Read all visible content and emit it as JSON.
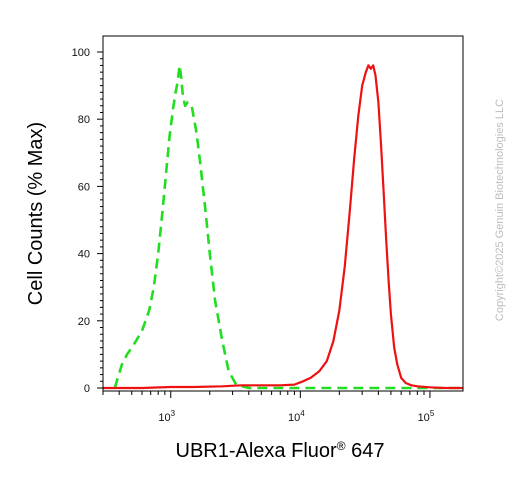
{
  "chart_data": {
    "type": "line",
    "xlabel_main": "UBR1-Alexa Fluor",
    "xlabel_sup": "®",
    "xlabel_tail": " 647",
    "ylabel": "Cell Counts (% Max)",
    "x_scale": "log",
    "xlim": [
      300,
      180000
    ],
    "ylim": [
      0,
      100
    ],
    "y_ticks": [
      0,
      20,
      40,
      60,
      80,
      100
    ],
    "x_ticks": [
      {
        "value": 1000,
        "base": "10",
        "exp": "3"
      },
      {
        "value": 10000,
        "base": "10",
        "exp": "4"
      },
      {
        "value": 100000,
        "base": "10",
        "exp": "5"
      }
    ],
    "grid": false,
    "series": [
      {
        "style": "dashed",
        "color": "#22dd22",
        "x": [
          370,
          390,
          420,
          460,
          520,
          600,
          680,
          740,
          800,
          860,
          920,
          980,
          1040,
          1090,
          1130,
          1170,
          1200,
          1240,
          1290,
          1350,
          1450,
          1580,
          1700,
          1850,
          2000,
          2200,
          2500,
          2800,
          3200,
          4000,
          6000,
          10000,
          30000,
          100000,
          180000
        ],
        "y": [
          0,
          3,
          7,
          10,
          13,
          17,
          23,
          30,
          40,
          52,
          64,
          75,
          83,
          88,
          91,
          96,
          93,
          87,
          84,
          85,
          84,
          76,
          66,
          53,
          40,
          26,
          14,
          5,
          1,
          0,
          0,
          0,
          0,
          0,
          0
        ]
      },
      {
        "style": "solid",
        "color": "#ee1111",
        "x": [
          300,
          600,
          1000,
          1500,
          2500,
          3500,
          5000,
          7000,
          9000,
          10500,
          12000,
          14000,
          16000,
          18000,
          20000,
          22000,
          24000,
          26000,
          28000,
          30000,
          32000,
          33500,
          35000,
          36500,
          38000,
          40000,
          42000,
          44000,
          46000,
          48000,
          50000,
          53000,
          56000,
          60000,
          65000,
          72000,
          80000,
          100000,
          130000,
          180000
        ],
        "y": [
          0,
          0,
          0.3,
          0.3,
          0.5,
          0.8,
          0.8,
          0.8,
          1,
          2,
          3,
          5,
          8,
          14,
          23,
          36,
          52,
          68,
          81,
          90,
          94,
          96,
          95,
          96,
          93,
          85,
          72,
          58,
          44,
          32,
          22,
          12,
          7,
          3,
          1.5,
          0.8,
          0.5,
          0.2,
          0,
          0
        ]
      }
    ]
  },
  "watermark": "Copyright©2025 Genuin Biotechnologies LLC",
  "colors": {
    "axis": "#000000",
    "gate_series": "#22dd22",
    "sample_series": "#ee1111"
  }
}
